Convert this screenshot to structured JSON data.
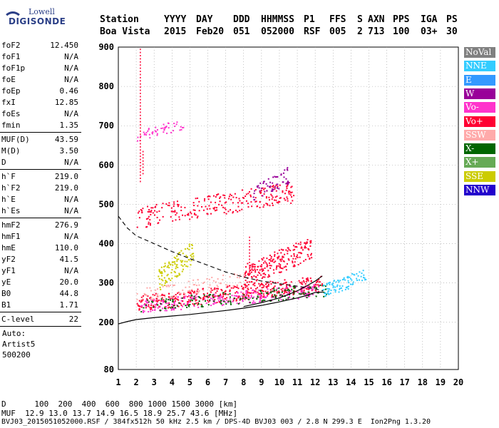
{
  "logo": {
    "line1": "Lowell",
    "line2": "DIGISONDE"
  },
  "header": {
    "row1": [
      "Station",
      "YYYY",
      "DAY",
      "DDD",
      "HHMMSS",
      "P1",
      "FFS",
      "S",
      "AXN",
      "PPS",
      "IGA",
      "PS"
    ],
    "row2": [
      "Boa Vista",
      "2015",
      "Feb20",
      "051",
      "052000",
      "RSF",
      "005",
      "2",
      "713",
      "100",
      "03+",
      "30"
    ]
  },
  "params": {
    "group1": [
      {
        "k": "foF2",
        "v": "12.450"
      },
      {
        "k": "foF1",
        "v": "N/A"
      },
      {
        "k": "foF1p",
        "v": "N/A"
      },
      {
        "k": "foE",
        "v": "N/A"
      },
      {
        "k": "foEp",
        "v": "0.46"
      },
      {
        "k": "fxI",
        "v": "12.85"
      },
      {
        "k": "foEs",
        "v": "N/A"
      },
      {
        "k": "fmin",
        "v": "1.35"
      }
    ],
    "group2": [
      {
        "k": "MUF(D)",
        "v": "43.59"
      },
      {
        "k": "M(D)",
        "v": "3.50"
      },
      {
        "k": "D",
        "v": "N/A"
      }
    ],
    "group3": [
      {
        "k": "h`F",
        "v": "219.0"
      },
      {
        "k": "h`F2",
        "v": "219.0"
      },
      {
        "k": "h`E",
        "v": "N/A"
      },
      {
        "k": "h`Es",
        "v": "N/A"
      }
    ],
    "group4": [
      {
        "k": "hmF2",
        "v": "276.9"
      },
      {
        "k": "hmF1",
        "v": "N/A"
      },
      {
        "k": "hmE",
        "v": "110.0"
      },
      {
        "k": "yF2",
        "v": "41.5"
      },
      {
        "k": "yF1",
        "v": "N/A"
      },
      {
        "k": "yE",
        "v": "20.0"
      },
      {
        "k": "B0",
        "v": "44.8"
      },
      {
        "k": "B1",
        "v": "1.71"
      }
    ],
    "group5": [
      {
        "k": "C-level",
        "v": "22"
      }
    ],
    "free": [
      "Auto:",
      "Artist5",
      "500200"
    ]
  },
  "legend": [
    {
      "label": "NoVal",
      "color": "#808080"
    },
    {
      "label": "NNE",
      "color": "#33ccff"
    },
    {
      "label": "E",
      "color": "#3399ff"
    },
    {
      "label": "W",
      "color": "#990099"
    },
    {
      "label": "Vo-",
      "color": "#ff33cc"
    },
    {
      "label": "Vo+",
      "color": "#ff0033"
    },
    {
      "label": "SSW",
      "color": "#ffaaaa"
    },
    {
      "label": "X-",
      "color": "#006600"
    },
    {
      "label": "X+",
      "color": "#66aa55"
    },
    {
      "label": "SSE",
      "color": "#cccc00"
    },
    {
      "label": "NNW",
      "color": "#2200cc"
    }
  ],
  "footer": {
    "line1": "D      100  200  400  600  800 1000 1500 3000 [km]",
    "line2": "MUF  12.9 13.0 13.7 14.9 16.5 18.9 25.7 43.6 [MHz]",
    "line3": "BVJ03_2015051052000.RSF / 384fx512h 50 kHz 2.5 km / DPS-4D BVJ03 003 / 2.8 N 299.3 E  Ion2Png 1.3.20"
  },
  "chart_data": {
    "type": "scatter",
    "title": "",
    "xlabel": "",
    "ylabel": "",
    "xlim": [
      1,
      20
    ],
    "ylim": [
      80,
      900
    ],
    "xticks": [
      1,
      2,
      3,
      4,
      5,
      6,
      7,
      8,
      9,
      10,
      11,
      12,
      13,
      14,
      15,
      16,
      17,
      18,
      19,
      20
    ],
    "yticks": [
      80,
      200,
      300,
      400,
      500,
      600,
      700,
      800,
      900
    ],
    "grid": "dotted",
    "legend_position": "right",
    "clusters": [
      {
        "name": "F2 trace O-mode",
        "color": "#ff0033",
        "x": [
          2.0,
          12.4
        ],
        "y": [
          230,
          320
        ],
        "n": 420
      },
      {
        "name": "F2 trace O-mode spread",
        "color": "#ff33cc",
        "x": [
          2.2,
          12.2
        ],
        "y": [
          225,
          300
        ],
        "n": 260
      },
      {
        "name": "F2 trace X-mode",
        "color": "#006600",
        "x": [
          2.2,
          12.6
        ],
        "y": [
          228,
          300
        ],
        "n": 160
      },
      {
        "name": "F2 spread high",
        "color": "#ff0033",
        "x": [
          8.0,
          11.8
        ],
        "y": [
          290,
          420
        ],
        "n": 220
      },
      {
        "name": "Second hop",
        "color": "#ff0033",
        "x": [
          2.0,
          10.8
        ],
        "y": [
          440,
          560
        ],
        "n": 260
      },
      {
        "name": "Second hop spread",
        "color": "#990099",
        "x": [
          8.5,
          10.5
        ],
        "y": [
          500,
          600
        ],
        "n": 60
      },
      {
        "name": "Third hop",
        "color": "#ff33cc",
        "x": [
          2.0,
          4.6
        ],
        "y": [
          660,
          720
        ],
        "n": 50
      },
      {
        "name": "Oblique SSE",
        "color": "#cccc00",
        "x": [
          3.2,
          5.2
        ],
        "y": [
          280,
          410
        ],
        "n": 110
      },
      {
        "name": "Oblique NNE",
        "color": "#33ccff",
        "x": [
          12.3,
          14.8
        ],
        "y": [
          260,
          340
        ],
        "n": 90
      },
      {
        "name": "Oblique SSW",
        "color": "#ffaaaa",
        "x": [
          2.0,
          8.0
        ],
        "y": [
          250,
          330
        ],
        "n": 90
      }
    ],
    "vertical_streaks": [
      {
        "x": 2.2,
        "y": [
          560,
          900
        ],
        "color": "#ff0033"
      },
      {
        "x": 2.35,
        "y": [
          580,
          640
        ],
        "color": "#ff0033"
      },
      {
        "x": 8.3,
        "y": [
          330,
          420
        ],
        "color": "#ff0033"
      }
    ],
    "profile_curve": {
      "x": [
        1.0,
        1.5,
        2.0,
        3.0,
        4.0,
        5.0,
        6.0,
        7.0,
        8.0,
        9.0,
        10.0,
        11.0,
        11.5,
        12.0,
        12.4,
        12.45
      ],
      "y": [
        196,
        202,
        207,
        212,
        216,
        220,
        225,
        230,
        236,
        243,
        252,
        262,
        268,
        276,
        276.9,
        277
      ]
    },
    "model_curve": {
      "x": [
        8.0,
        9.0,
        10.0,
        11.0,
        11.5,
        12.0,
        12.4
      ],
      "y": [
        240,
        250,
        262,
        280,
        292,
        305,
        318
      ]
    },
    "muf_curve": {
      "x": [
        1.0,
        1.5,
        2.0,
        3.0,
        4.0,
        5.0,
        6.0,
        7.0,
        8.0,
        9.0,
        10.0,
        11.0,
        12.0,
        12.45
      ],
      "y": [
        470,
        440,
        420,
        400,
        380,
        362,
        345,
        328,
        315,
        305,
        298,
        292,
        285,
        280
      ]
    }
  }
}
